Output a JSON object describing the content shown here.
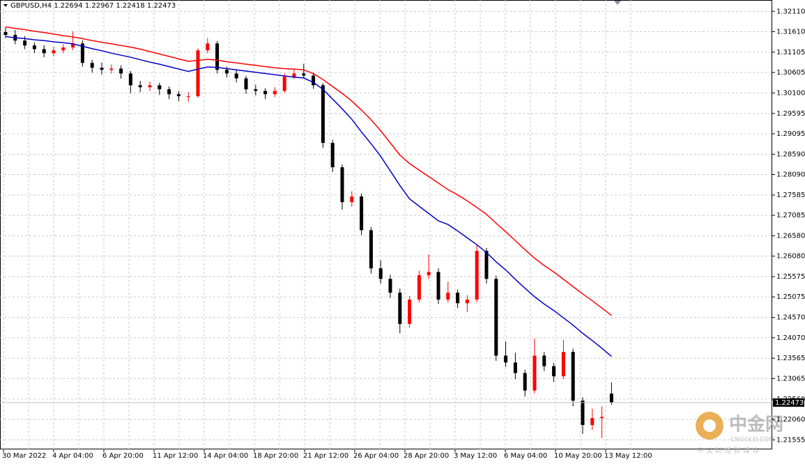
{
  "chart_data": {
    "type": "candlestick",
    "symbol": "GBPUSD,H4",
    "up_color": "#ff0000",
    "down_color": "#000000",
    "ylim": [
      1.2132,
      1.3239
    ],
    "yticks": [
      {
        "value": 1.3211,
        "label": "1.32110"
      },
      {
        "value": 1.3161,
        "label": "1.31610"
      },
      {
        "value": 1.31105,
        "label": "1.31105"
      },
      {
        "value": 1.30605,
        "label": "1.30605"
      },
      {
        "value": 1.301,
        "label": "1.30100"
      },
      {
        "value": 1.29595,
        "label": "1.29595"
      },
      {
        "value": 1.29095,
        "label": "1.29095"
      },
      {
        "value": 1.2859,
        "label": "1.28590"
      },
      {
        "value": 1.2809,
        "label": "1.28090"
      },
      {
        "value": 1.27585,
        "label": "1.27585"
      },
      {
        "value": 1.27085,
        "label": "1.27085"
      },
      {
        "value": 1.2658,
        "label": "1.26580"
      },
      {
        "value": 1.2608,
        "label": "1.26080"
      },
      {
        "value": 1.25575,
        "label": "1.25575"
      },
      {
        "value": 1.25075,
        "label": "1.25075"
      },
      {
        "value": 1.2457,
        "label": "1.24570"
      },
      {
        "value": 1.2407,
        "label": "1.24070"
      },
      {
        "value": 1.23565,
        "label": "1.23565"
      },
      {
        "value": 1.23065,
        "label": "1.23065"
      },
      {
        "value": 1.2256,
        "label": "1.22560"
      },
      {
        "value": 1.2206,
        "label": "1.22060"
      },
      {
        "value": 1.21555,
        "label": "1.21555"
      }
    ],
    "xticks": [
      "30 Mar 2022",
      "4 Apr 04:00",
      "6 Apr 20:00",
      "11 Apr 12:00",
      "14 Apr 04:00",
      "18 Apr 20:00",
      "21 Apr 12:00",
      "26 Apr 04:00",
      "28 Apr 20:00",
      "3 May 12:00",
      "6 May 04:00",
      "10 May 20:00",
      "13 May 12:00"
    ],
    "grid": true,
    "candles": [
      [
        1.316,
        1.3172,
        1.3145,
        1.3153
      ],
      [
        1.3153,
        1.3165,
        1.313,
        1.3139
      ],
      [
        1.3139,
        1.315,
        1.3118,
        1.3127
      ],
      [
        1.3127,
        1.3135,
        1.3108,
        1.3118
      ],
      [
        1.3118,
        1.3128,
        1.3098,
        1.3108
      ],
      [
        1.3108,
        1.3124,
        1.31,
        1.3115
      ],
      [
        1.3115,
        1.313,
        1.3108,
        1.3122
      ],
      [
        1.3122,
        1.3162,
        1.3115,
        1.3132
      ],
      [
        1.3132,
        1.314,
        1.3075,
        1.3084
      ],
      [
        1.3084,
        1.3092,
        1.306,
        1.3072
      ],
      [
        1.3072,
        1.3085,
        1.3055,
        1.3067
      ],
      [
        1.3067,
        1.308,
        1.3058,
        1.307
      ],
      [
        1.307,
        1.3078,
        1.3045,
        1.3058
      ],
      [
        1.3058,
        1.3064,
        1.301,
        1.3029
      ],
      [
        1.3029,
        1.304,
        1.3012,
        1.3024
      ],
      [
        1.3024,
        1.3038,
        1.3015,
        1.3029
      ],
      [
        1.3029,
        1.3035,
        1.3005,
        1.3019
      ],
      [
        1.3019,
        1.3026,
        1.2995,
        1.3007
      ],
      [
        1.3007,
        1.3015,
        1.299,
        1.3002
      ],
      [
        1.3002,
        1.3012,
        1.2988,
        1.3002
      ],
      [
        1.3002,
        1.312,
        1.2998,
        1.3115
      ],
      [
        1.3115,
        1.3145,
        1.3108,
        1.3132
      ],
      [
        1.3132,
        1.3138,
        1.3058,
        1.3067
      ],
      [
        1.3067,
        1.3075,
        1.3048,
        1.3058
      ],
      [
        1.3058,
        1.3066,
        1.3036,
        1.3046
      ],
      [
        1.3046,
        1.3052,
        1.3008,
        1.3019
      ],
      [
        1.3019,
        1.303,
        1.3004,
        1.3015
      ],
      [
        1.3015,
        1.3022,
        1.2995,
        1.3007
      ],
      [
        1.3007,
        1.3024,
        1.3,
        1.3015
      ],
      [
        1.3015,
        1.3058,
        1.301,
        1.305
      ],
      [
        1.305,
        1.3068,
        1.3044,
        1.3058
      ],
      [
        1.3058,
        1.3082,
        1.3046,
        1.3053
      ],
      [
        1.3053,
        1.306,
        1.302,
        1.3029
      ],
      [
        1.3029,
        1.3034,
        1.2875,
        1.2887
      ],
      [
        1.2887,
        1.2895,
        1.2815,
        1.2827
      ],
      [
        1.2827,
        1.2834,
        1.2722,
        1.2741
      ],
      [
        1.2741,
        1.2768,
        1.273,
        1.2755
      ],
      [
        1.2755,
        1.2762,
        1.266,
        1.2672
      ],
      [
        1.2672,
        1.268,
        1.2565,
        1.2578
      ],
      [
        1.2578,
        1.2598,
        1.254,
        1.2552
      ],
      [
        1.2552,
        1.2562,
        1.2505,
        1.2518
      ],
      [
        1.2518,
        1.2528,
        1.2418,
        1.2441
      ],
      [
        1.2441,
        1.251,
        1.2432,
        1.2501
      ],
      [
        1.2501,
        1.2572,
        1.2494,
        1.2561
      ],
      [
        1.2561,
        1.2612,
        1.2552,
        1.2569
      ],
      [
        1.2569,
        1.2578,
        1.249,
        1.2501
      ],
      [
        1.2501,
        1.2545,
        1.2494,
        1.2518
      ],
      [
        1.2518,
        1.2526,
        1.248,
        1.2492
      ],
      [
        1.2492,
        1.2512,
        1.247,
        1.2501
      ],
      [
        1.2501,
        1.2635,
        1.2494,
        1.2621
      ],
      [
        1.2621,
        1.2628,
        1.254,
        1.2552
      ],
      [
        1.2552,
        1.256,
        1.235,
        1.2363
      ],
      [
        1.2363,
        1.2398,
        1.2335,
        1.2346
      ],
      [
        1.2346,
        1.237,
        1.2305,
        1.232
      ],
      [
        1.232,
        1.2328,
        1.2262,
        1.2277
      ],
      [
        1.2277,
        1.2405,
        1.227,
        1.2363
      ],
      [
        1.2363,
        1.2372,
        1.2325,
        1.2337
      ],
      [
        1.2337,
        1.2345,
        1.2298,
        1.2312
      ],
      [
        1.2312,
        1.2402,
        1.2305,
        1.2372
      ],
      [
        1.2372,
        1.238,
        1.2238,
        1.2252
      ],
      [
        1.2252,
        1.226,
        1.217,
        1.2192
      ],
      [
        1.2192,
        1.2232,
        1.218,
        1.2209
      ],
      [
        1.2209,
        1.2238,
        1.216,
        1.2212
      ],
      [
        1.22694,
        1.22967,
        1.22418,
        1.22473
      ]
    ],
    "series": [
      {
        "color": "#ff0000",
        "values": [
          1.3173,
          1.3169,
          1.3166,
          1.3162,
          1.3159,
          1.3155,
          1.3151,
          1.3148,
          1.3144,
          1.3139,
          1.3135,
          1.3131,
          1.3127,
          1.3123,
          1.3118,
          1.3112,
          1.3106,
          1.31,
          1.3094,
          1.3088,
          1.309,
          1.3093,
          1.3091,
          1.3087,
          1.3084,
          1.3081,
          1.3078,
          1.3075,
          1.3072,
          1.307,
          1.3069,
          1.3067,
          1.3058,
          1.3043,
          1.3026,
          1.3009,
          1.299,
          1.2968,
          1.2944,
          1.2917,
          1.2887,
          1.2857,
          1.2836,
          1.282,
          1.2804,
          1.2788,
          1.2772,
          1.2759,
          1.2744,
          1.2728,
          1.2711,
          1.2689,
          1.2668,
          1.2646,
          1.2624,
          1.2603,
          1.2585,
          1.2569,
          1.2551,
          1.2533,
          1.2515,
          1.2498,
          1.248,
          1.2462
        ]
      },
      {
        "color": "#0000c8",
        "values": [
          1.3149,
          1.3146,
          1.3144,
          1.3141,
          1.3139,
          1.3136,
          1.3134,
          1.3131,
          1.3125,
          1.3119,
          1.3114,
          1.3108,
          1.3103,
          1.3098,
          1.3092,
          1.3086,
          1.3081,
          1.3075,
          1.3069,
          1.3063,
          1.3069,
          1.3074,
          1.3073,
          1.307,
          1.3067,
          1.3064,
          1.3061,
          1.3058,
          1.3055,
          1.3052,
          1.3049,
          1.3047,
          1.3036,
          1.3019,
          1.2995,
          1.2971,
          1.2945,
          1.2914,
          1.2885,
          1.2854,
          1.2818,
          1.2782,
          1.2749,
          1.2731,
          1.2713,
          1.2695,
          1.2686,
          1.267,
          1.2653,
          1.2636,
          1.2617,
          1.2594,
          1.2574,
          1.2551,
          1.2529,
          1.2508,
          1.249,
          1.2474,
          1.2456,
          1.2438,
          1.2418,
          1.24,
          1.2381,
          1.2361
        ]
      }
    ]
  },
  "watermark": {
    "logo": "中金网",
    "site": "CNGOLD.COM",
    "tagline": "中 文 财 经 新 媒 体"
  }
}
